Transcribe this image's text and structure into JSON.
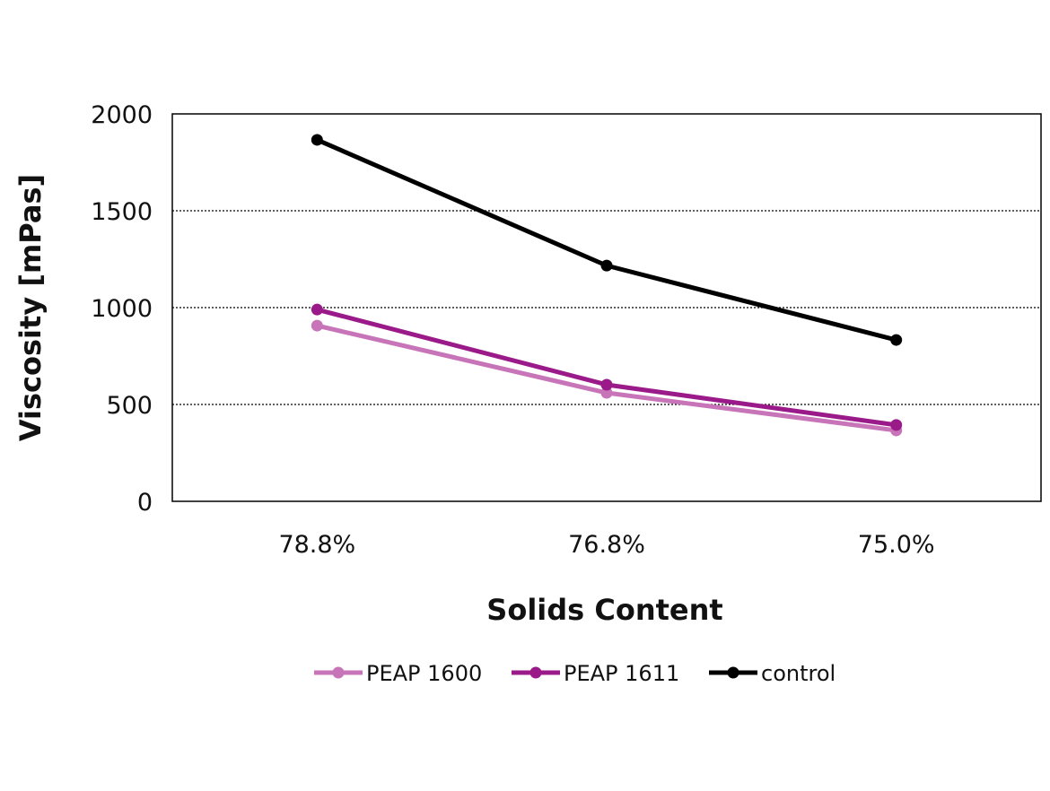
{
  "chart_data": {
    "type": "line",
    "title": "",
    "xlabel": "Solids Content",
    "ylabel": "Viscosity [mPas]",
    "categories": [
      "78.8%",
      "76.8%",
      "75.0%"
    ],
    "ylim": [
      0,
      2000
    ],
    "yticks": [
      0,
      500,
      1000,
      1500,
      2000
    ],
    "ytick_labels": [
      "0",
      "500",
      "1000",
      "1500",
      "2000"
    ],
    "grid": "horizontal dotted",
    "legend_position": "bottom",
    "series": [
      {
        "name": "PEAP 1600",
        "color": "#c774b8",
        "values": [
          907,
          560,
          366
        ]
      },
      {
        "name": "PEAP 1611",
        "color": "#9b1a8a",
        "values": [
          990,
          602,
          394
        ]
      },
      {
        "name": "control",
        "color": "#000000",
        "values": [
          1866,
          1217,
          833
        ]
      }
    ]
  }
}
